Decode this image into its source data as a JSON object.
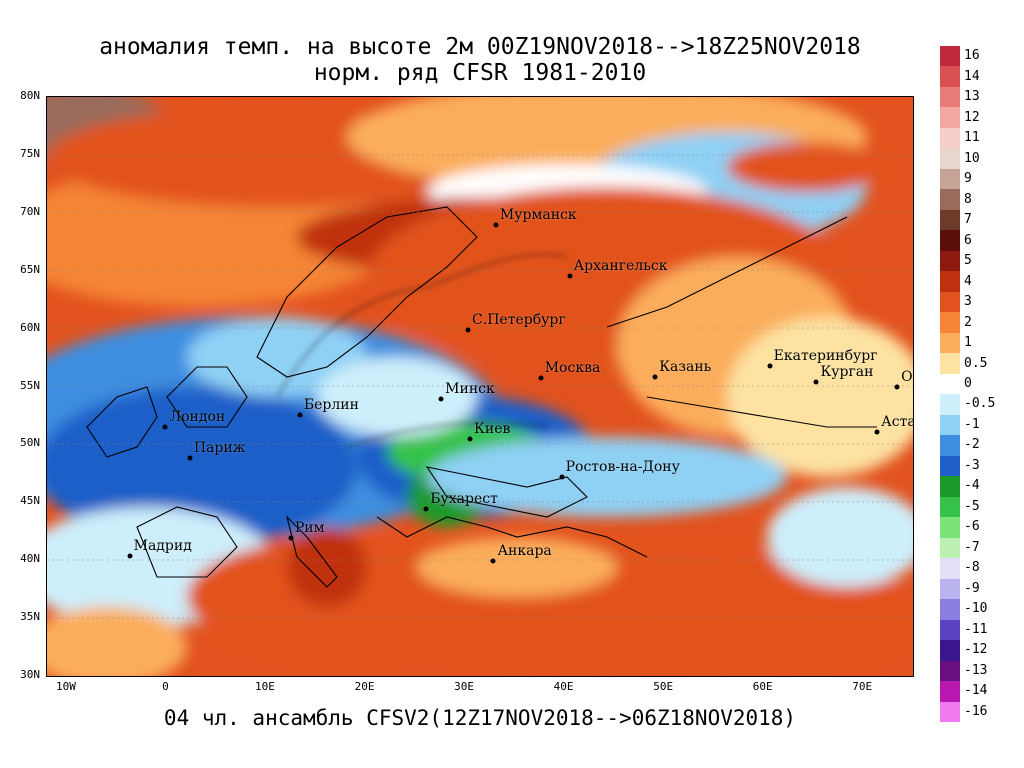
{
  "title_line1": "аномалия темп. на высоте 2м 00Z19NOV2018-->18Z25NOV2018",
  "title_line2": "норм. ряд CFSR 1981-2010",
  "footer": "04 чл. ансамбль CFSV2(12Z17NOV2018-->06Z18NOV2018)",
  "lat_ticks": [
    "80N",
    "75N",
    "70N",
    "65N",
    "60N",
    "55N",
    "50N",
    "45N",
    "40N",
    "35N",
    "30N"
  ],
  "lon_ticks": [
    "10W",
    "0",
    "10E",
    "20E",
    "30E",
    "40E",
    "50E",
    "60E",
    "70E"
  ],
  "cities": [
    {
      "name": "Мурманск",
      "lon": 33.1,
      "lat": 68.97
    },
    {
      "name": "Архангельск",
      "lon": 40.5,
      "lat": 64.5
    },
    {
      "name": "С.Петербург",
      "lon": 30.3,
      "lat": 59.9
    },
    {
      "name": "Москва",
      "lon": 37.6,
      "lat": 55.7
    },
    {
      "name": "Казань",
      "lon": 49.1,
      "lat": 55.8
    },
    {
      "name": "Екатеринбург",
      "lon": 60.6,
      "lat": 56.8
    },
    {
      "name": "Курган",
      "lon": 65.3,
      "lat": 55.4
    },
    {
      "name": "Омск",
      "lon": 73.4,
      "lat": 55.0
    },
    {
      "name": "Астана",
      "lon": 71.4,
      "lat": 51.1
    },
    {
      "name": "Минск",
      "lon": 27.6,
      "lat": 53.9
    },
    {
      "name": "Берлин",
      "lon": 13.4,
      "lat": 52.5
    },
    {
      "name": "Лондон",
      "lon": -0.1,
      "lat": 51.5
    },
    {
      "name": "Париж",
      "lon": 2.35,
      "lat": 48.85
    },
    {
      "name": "Киев",
      "lon": 30.5,
      "lat": 50.45
    },
    {
      "name": "Ростов-на-Дону",
      "lon": 39.7,
      "lat": 47.2
    },
    {
      "name": "Бухарест",
      "lon": 26.1,
      "lat": 44.4
    },
    {
      "name": "Рим",
      "lon": 12.5,
      "lat": 41.9
    },
    {
      "name": "Мадрид",
      "lon": -3.7,
      "lat": 40.4
    },
    {
      "name": "Анкара",
      "lon": 32.85,
      "lat": 39.9
    }
  ],
  "legend": [
    {
      "label": "16",
      "color": "#c0283c"
    },
    {
      "label": "14",
      "color": "#d8504f"
    },
    {
      "label": "13",
      "color": "#e87c78"
    },
    {
      "label": "12",
      "color": "#f3a7a0"
    },
    {
      "label": "11",
      "color": "#f7cfc8"
    },
    {
      "label": "10",
      "color": "#e9d6cf"
    },
    {
      "label": "9",
      "color": "#c7a396"
    },
    {
      "label": "8",
      "color": "#9a6b5a"
    },
    {
      "label": "7",
      "color": "#6e3a2a"
    },
    {
      "label": "6",
      "color": "#5a0f0a"
    },
    {
      "label": "5",
      "color": "#8c1a10"
    },
    {
      "label": "4",
      "color": "#c0300f"
    },
    {
      "label": "3",
      "color": "#e2521e"
    },
    {
      "label": "2",
      "color": "#f58436"
    },
    {
      "label": "1",
      "color": "#fbad5c"
    },
    {
      "label": "0.5",
      "color": "#fde2a2"
    },
    {
      "label": "0",
      "color": "#ffffff"
    },
    {
      "label": "-0.5",
      "color": "#cdeefb"
    },
    {
      "label": "-1",
      "color": "#8fd0f5"
    },
    {
      "label": "-2",
      "color": "#3d8ee0"
    },
    {
      "label": "-3",
      "color": "#1f5fc8"
    },
    {
      "label": "-4",
      "color": "#1a9a2a"
    },
    {
      "label": "-5",
      "color": "#36c24a"
    },
    {
      "label": "-6",
      "color": "#7ee27a"
    },
    {
      "label": "-7",
      "color": "#bdf1b3"
    },
    {
      "label": "-8",
      "color": "#e3dff7"
    },
    {
      "label": "-9",
      "color": "#b9b3ee"
    },
    {
      "label": "-10",
      "color": "#8a7ee0"
    },
    {
      "label": "-11",
      "color": "#5a42c0"
    },
    {
      "label": "-12",
      "color": "#3a168f"
    },
    {
      "label": "-13",
      "color": "#6a0f80"
    },
    {
      "label": "-14",
      "color": "#b818b0"
    },
    {
      "label": "-16",
      "color": "#f07af0"
    }
  ]
}
